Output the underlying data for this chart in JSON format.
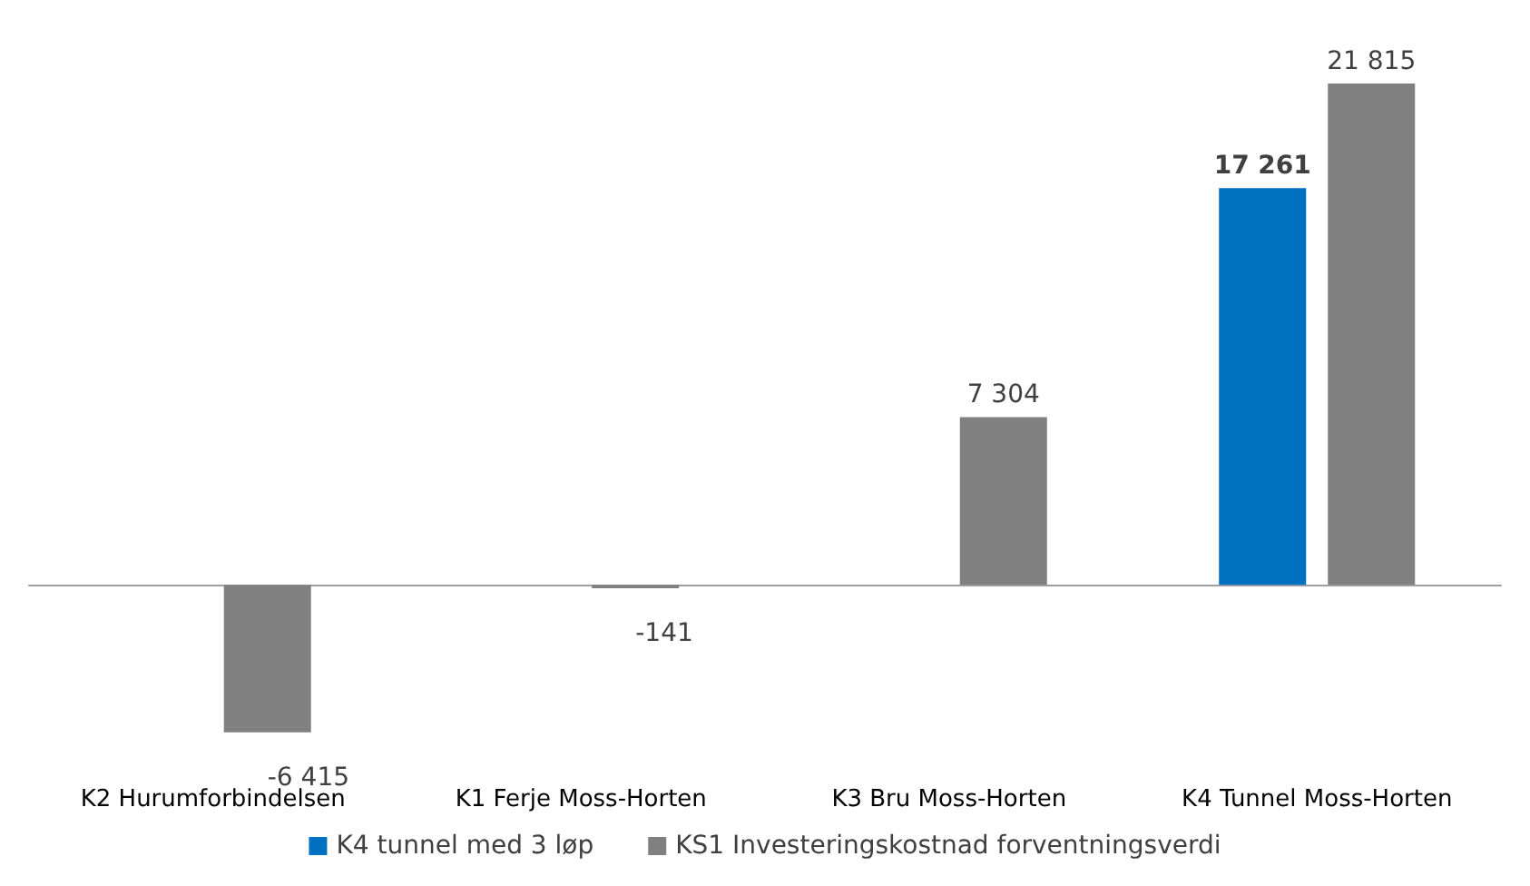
{
  "chart_data": {
    "type": "bar",
    "categories": [
      "K2 Hurumforbindelsen",
      "K1 Ferje Moss-Horten",
      "K3 Bru Moss-Horten",
      "K4 Tunnel Moss-Horten"
    ],
    "series": [
      {
        "name": "K4 tunnel med 3 løp",
        "color": "#0070c0",
        "values": [
          null,
          null,
          null,
          17261
        ],
        "value_labels": [
          null,
          null,
          null,
          "17 261"
        ]
      },
      {
        "name": "KS1 Investeringskostnad forventningsverdi",
        "color": "#808080",
        "values": [
          -6415,
          -141,
          7304,
          21815
        ],
        "value_labels": [
          "-6 415",
          "-141",
          "7 304",
          "21 815"
        ]
      }
    ],
    "grid": false,
    "legend": "bottom"
  }
}
